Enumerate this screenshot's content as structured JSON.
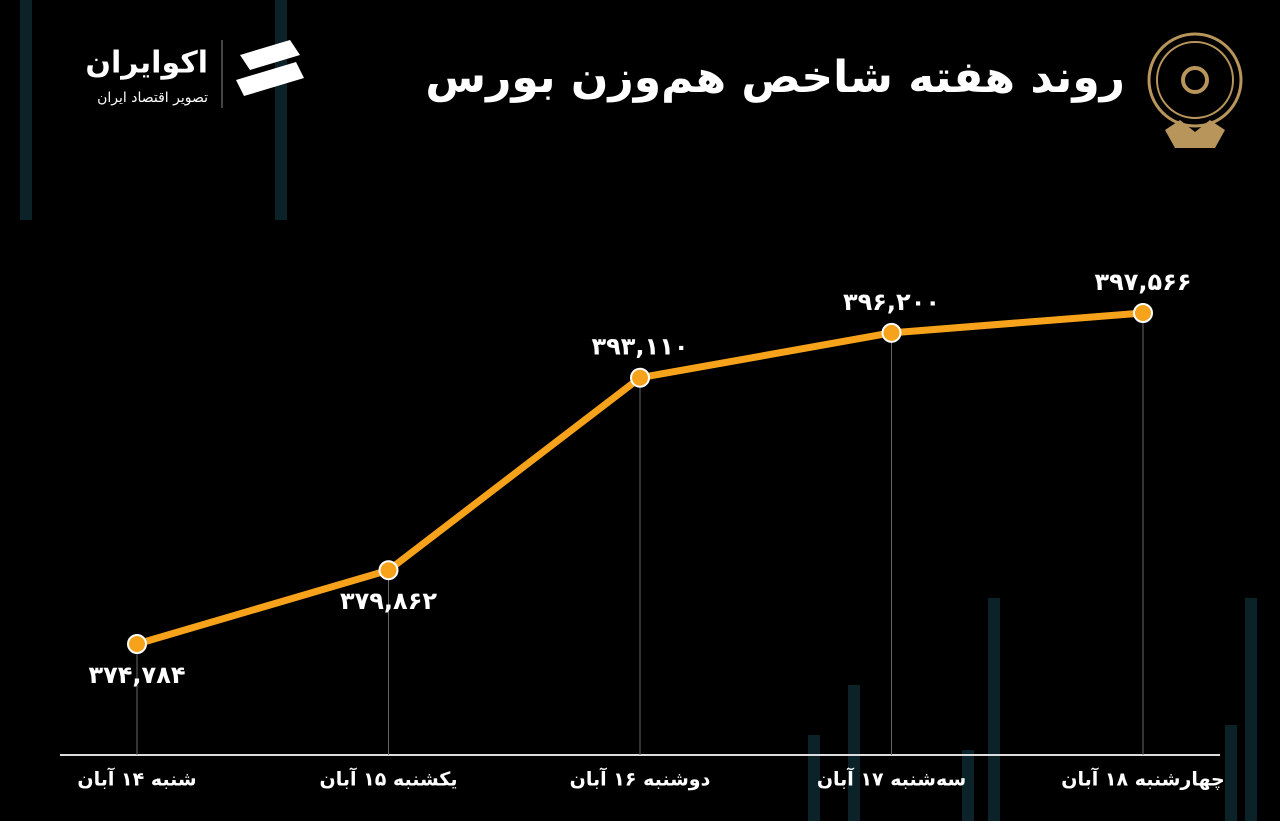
{
  "brand": {
    "name": "اکوایران",
    "tagline": "تصویر اقتصاد ایران"
  },
  "chart_data": {
    "type": "line",
    "title": "روند هفته شاخص هم‌وزن بورس",
    "categories": [
      "شنبه ۱۴ آبان",
      "یکشنبه ۱۵ آبان",
      "دوشنبه ۱۶ آبان",
      "سه‌شنبه ۱۷ آبان",
      "چهارشنبه ۱۸ آبان"
    ],
    "values": [
      374784,
      379862,
      393110,
      396200,
      397566
    ],
    "value_labels": [
      "۳۷۴,۷۸۴",
      "۳۷۹,۸۶۲",
      "۳۹۳,۱۱۰",
      "۳۹۶,۲۰۰",
      "۳۹۷,۵۶۶"
    ],
    "color": "#f7a21b"
  }
}
